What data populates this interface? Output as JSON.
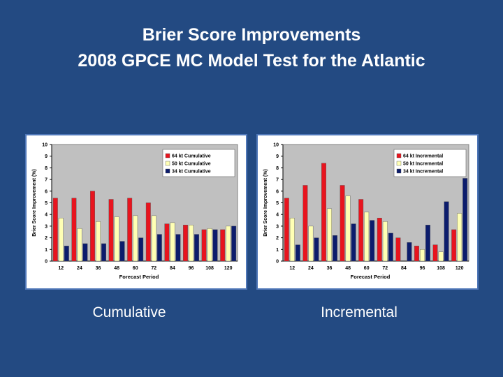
{
  "slide": {
    "title_line_1": "Brier Score Improvements",
    "title_line_2": "2008 GPCE MC Model Test for the Atlantic",
    "caption_left": "Cumulative",
    "caption_right": "Incremental"
  },
  "colors": {
    "background": "#234a82",
    "panel_border": "#4f77b8",
    "plot_area": "#c0c0c0",
    "series_64": "#e8141e",
    "series_50": "#ffffb4",
    "series_34": "#0c1c6c"
  },
  "chart_data": [
    {
      "type": "bar",
      "title": "",
      "xlabel": "Forecast Period",
      "ylabel": "Brier Score Improvement (%)",
      "ylim": [
        0,
        10
      ],
      "yticks": [
        0,
        1,
        2,
        3,
        4,
        5,
        6,
        7,
        8,
        9,
        10
      ],
      "categories": [
        "12",
        "24",
        "36",
        "48",
        "60",
        "72",
        "84",
        "96",
        "108",
        "120"
      ],
      "legend_position": "top-right",
      "grid": false,
      "series": [
        {
          "name": "64 kt Cumulative",
          "color": "#e8141e",
          "values": [
            5.4,
            5.4,
            6.0,
            5.3,
            5.4,
            5.0,
            3.2,
            3.1,
            2.7,
            2.7
          ]
        },
        {
          "name": "50 kt Cumulative",
          "color": "#ffffb4",
          "values": [
            3.7,
            2.8,
            3.4,
            3.8,
            3.9,
            3.9,
            3.3,
            3.1,
            2.8,
            3.0
          ]
        },
        {
          "name": "34 kt Cumulative",
          "color": "#0c1c6c",
          "values": [
            1.3,
            1.5,
            1.5,
            1.7,
            2.0,
            2.3,
            2.3,
            2.3,
            2.7,
            3.0
          ]
        }
      ]
    },
    {
      "type": "bar",
      "title": "",
      "xlabel": "Forecast Period",
      "ylabel": "Brier Score Improvement (%)",
      "ylim": [
        0,
        10
      ],
      "yticks": [
        0,
        1,
        2,
        3,
        4,
        5,
        6,
        7,
        8,
        9,
        10
      ],
      "categories": [
        "12",
        "24",
        "36",
        "48",
        "60",
        "72",
        "84",
        "96",
        "108",
        "120"
      ],
      "legend_position": "top-right",
      "grid": false,
      "series": [
        {
          "name": "64 kt Incremental",
          "color": "#e8141e",
          "values": [
            5.4,
            6.5,
            8.4,
            6.5,
            5.3,
            3.7,
            2.0,
            1.3,
            1.4,
            2.7
          ]
        },
        {
          "name": "50 kt Incremental",
          "color": "#ffffb4",
          "values": [
            3.7,
            3.0,
            4.5,
            5.6,
            4.2,
            3.4,
            0.0,
            1.0,
            0.8,
            4.1
          ]
        },
        {
          "name": "34 kt Incremental",
          "color": "#0c1c6c",
          "values": [
            1.4,
            2.0,
            2.2,
            3.2,
            3.5,
            2.4,
            1.6,
            3.1,
            5.1,
            7.1
          ]
        }
      ]
    }
  ]
}
